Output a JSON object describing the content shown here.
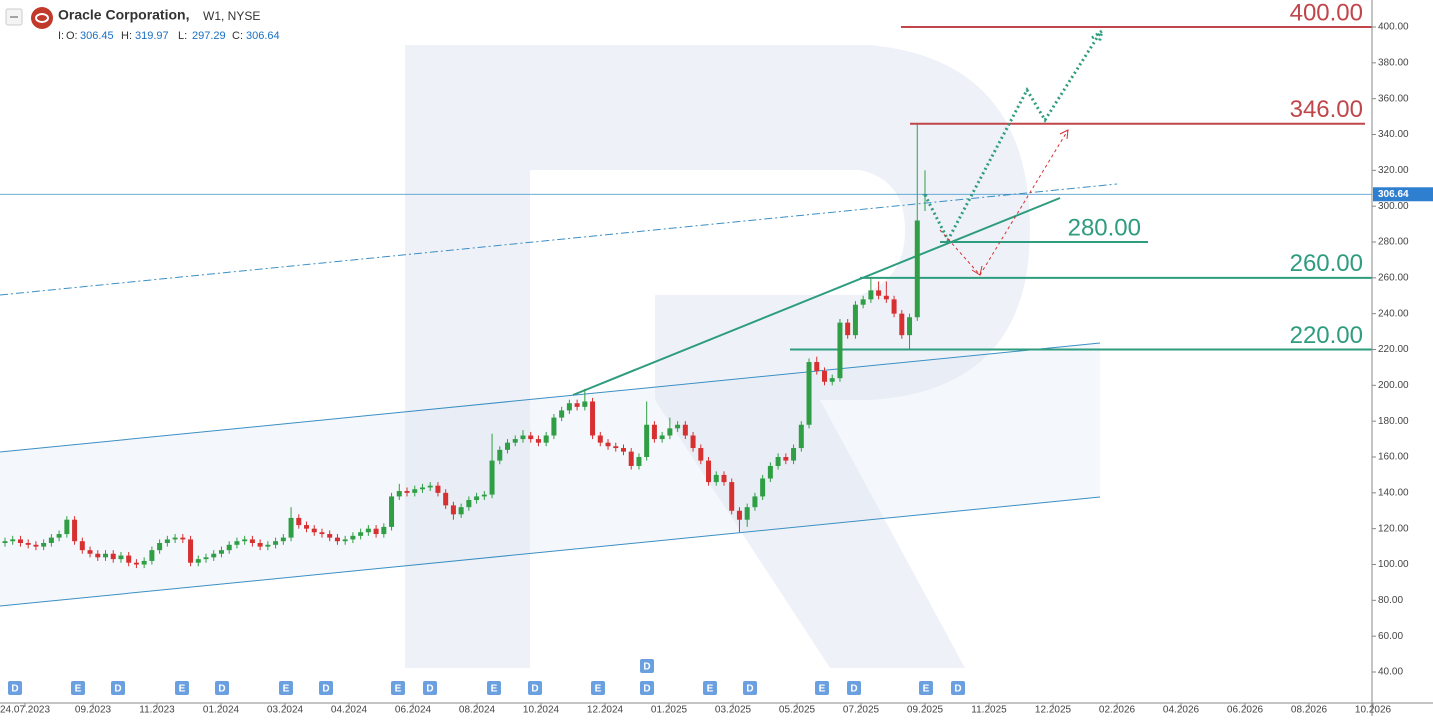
{
  "chart_data": {
    "type": "candlestick",
    "title": "Oracle Corporation,",
    "subtitle": "W1, NYSE",
    "header_labels": [
      "I:",
      "O:",
      "H:",
      "L:",
      "C:"
    ],
    "up_color": "#2f9e44",
    "down_color": "#d63031",
    "ylim": [
      22.7,
      415.07
    ],
    "yticks": [
      {
        "value": 40,
        "label": "40.00"
      },
      {
        "value": 60,
        "label": "60.00"
      },
      {
        "value": 80,
        "label": "80.00"
      },
      {
        "value": 100,
        "label": "100.00"
      },
      {
        "value": 120,
        "label": "120.00"
      },
      {
        "value": 140,
        "label": "140.00"
      },
      {
        "value": 160,
        "label": "160.00"
      },
      {
        "value": 180,
        "label": "180.00"
      },
      {
        "value": 200,
        "label": "200.00"
      },
      {
        "value": 220,
        "label": "220.00"
      },
      {
        "value": 240,
        "label": "240.00"
      },
      {
        "value": 260,
        "label": "260.00"
      },
      {
        "value": 280,
        "label": "280.00"
      },
      {
        "value": 300,
        "label": "300.00"
      },
      {
        "value": 320,
        "label": "320.00"
      },
      {
        "value": 340,
        "label": "340.00"
      },
      {
        "value": 360,
        "label": "360.00"
      },
      {
        "value": 380,
        "label": "380.00"
      },
      {
        "value": 400,
        "label": "400.00"
      }
    ],
    "x_labels": [
      "24.07.2023",
      "09.2023",
      "11.2023",
      "01.2024",
      "03.2024",
      "04.2024",
      "06.2024",
      "08.2024",
      "10.2024",
      "12.2024",
      "01.2025",
      "03.2025",
      "05.2025",
      "07.2025",
      "09.2025",
      "11.2025",
      "12.2025",
      "02.2026",
      "04.2026",
      "06.2026",
      "08.2026",
      "10.2026"
    ],
    "levels": [
      {
        "value": 400,
        "label": "400.00",
        "color": "#c0464b"
      },
      {
        "value": 346,
        "label": "346.00",
        "color": "#c0464b"
      },
      {
        "value": 280,
        "label": "280.00",
        "color": "#2e9c7e"
      },
      {
        "value": 260,
        "label": "260.00",
        "color": "#2e9c7e"
      },
      {
        "value": 220,
        "label": "220.00",
        "color": "#2e9c7e"
      }
    ],
    "events": [
      "D",
      "E",
      "D",
      "E",
      "D",
      "E",
      "D",
      "E",
      "D",
      "E",
      "D",
      "E",
      "D",
      "D",
      "E",
      "D",
      "E",
      "D",
      "E",
      "D"
    ],
    "ohlc": [
      [
        112,
        115,
        110,
        113
      ],
      [
        113,
        116,
        111,
        114
      ],
      [
        114,
        116,
        110,
        112
      ],
      [
        112,
        114,
        109,
        111
      ],
      [
        111,
        113,
        108,
        110
      ],
      [
        110,
        114,
        108,
        112
      ],
      [
        112,
        117,
        110,
        115
      ],
      [
        115,
        119,
        113,
        117
      ],
      [
        117,
        127,
        115,
        125
      ],
      [
        125,
        127,
        111,
        113
      ],
      [
        113,
        115,
        106,
        108
      ],
      [
        108,
        110,
        104,
        106
      ],
      [
        106,
        108,
        102,
        104
      ],
      [
        104,
        108,
        102,
        106
      ],
      [
        106,
        108,
        101,
        103
      ],
      [
        103,
        107,
        101,
        105
      ],
      [
        105,
        107,
        99,
        101
      ],
      [
        101,
        103,
        98,
        100
      ],
      [
        100,
        104,
        98,
        102
      ],
      [
        102,
        110,
        100,
        108
      ],
      [
        108,
        114,
        106,
        112
      ],
      [
        112,
        116,
        110,
        114
      ],
      [
        114,
        117,
        112,
        115
      ],
      [
        115,
        117,
        112,
        114
      ],
      [
        114,
        116,
        99,
        101
      ],
      [
        101,
        105,
        99,
        103
      ],
      [
        103,
        106,
        101,
        104
      ],
      [
        104,
        108,
        102,
        106
      ],
      [
        106,
        110,
        104,
        108
      ],
      [
        108,
        113,
        106,
        111
      ],
      [
        111,
        115,
        109,
        113
      ],
      [
        113,
        116,
        111,
        114
      ],
      [
        114,
        116,
        110,
        112
      ],
      [
        112,
        114,
        108,
        110
      ],
      [
        110,
        113,
        108,
        111
      ],
      [
        111,
        115,
        109,
        113
      ],
      [
        113,
        117,
        111,
        115
      ],
      [
        115,
        132,
        113,
        126
      ],
      [
        126,
        128,
        120,
        122
      ],
      [
        122,
        124,
        118,
        120
      ],
      [
        120,
        122,
        116,
        118
      ],
      [
        118,
        120,
        115,
        117
      ],
      [
        117,
        119,
        113,
        115
      ],
      [
        115,
        117,
        111,
        113
      ],
      [
        113,
        116,
        111,
        114
      ],
      [
        114,
        118,
        112,
        116
      ],
      [
        116,
        120,
        114,
        118
      ],
      [
        118,
        122,
        116,
        120
      ],
      [
        120,
        122,
        115,
        117
      ],
      [
        117,
        123,
        115,
        121
      ],
      [
        121,
        140,
        119,
        138
      ],
      [
        138,
        145,
        136,
        141
      ],
      [
        141,
        143,
        138,
        140
      ],
      [
        140,
        144,
        138,
        142
      ],
      [
        142,
        145,
        140,
        143
      ],
      [
        143,
        146,
        141,
        144
      ],
      [
        144,
        146,
        138,
        140
      ],
      [
        140,
        142,
        131,
        133
      ],
      [
        133,
        135,
        125,
        128
      ],
      [
        128,
        134,
        126,
        132
      ],
      [
        132,
        138,
        130,
        136
      ],
      [
        136,
        140,
        134,
        138
      ],
      [
        138,
        141,
        136,
        139
      ],
      [
        139,
        173,
        137,
        158
      ],
      [
        158,
        166,
        156,
        164
      ],
      [
        164,
        170,
        162,
        168
      ],
      [
        168,
        172,
        166,
        170
      ],
      [
        170,
        175,
        168,
        172
      ],
      [
        172,
        174,
        168,
        170
      ],
      [
        170,
        172,
        166,
        168
      ],
      [
        168,
        174,
        166,
        172
      ],
      [
        172,
        184,
        170,
        182
      ],
      [
        182,
        188,
        180,
        186
      ],
      [
        186,
        192,
        184,
        190
      ],
      [
        190,
        192,
        186,
        188
      ],
      [
        188,
        198,
        186,
        191
      ],
      [
        191,
        193,
        170,
        172
      ],
      [
        172,
        174,
        166,
        168
      ],
      [
        168,
        170,
        164,
        166
      ],
      [
        166,
        168,
        163,
        165
      ],
      [
        165,
        167,
        161,
        163
      ],
      [
        163,
        165,
        153,
        155
      ],
      [
        155,
        162,
        153,
        160
      ],
      [
        160,
        191,
        158,
        178
      ],
      [
        178,
        180,
        168,
        170
      ],
      [
        170,
        174,
        168,
        172
      ],
      [
        172,
        182,
        170,
        176
      ],
      [
        176,
        180,
        174,
        178
      ],
      [
        178,
        180,
        170,
        172
      ],
      [
        172,
        174,
        163,
        165
      ],
      [
        165,
        167,
        156,
        158
      ],
      [
        158,
        160,
        144,
        146
      ],
      [
        146,
        152,
        144,
        150
      ],
      [
        150,
        152,
        144,
        146
      ],
      [
        146,
        148,
        128,
        130
      ],
      [
        130,
        132,
        118,
        125
      ],
      [
        125,
        134,
        121,
        132
      ],
      [
        132,
        140,
        130,
        138
      ],
      [
        138,
        150,
        136,
        148
      ],
      [
        148,
        157,
        146,
        155
      ],
      [
        155,
        162,
        153,
        160
      ],
      [
        160,
        162,
        156,
        158
      ],
      [
        158,
        167,
        156,
        165
      ],
      [
        165,
        180,
        163,
        178
      ],
      [
        178,
        215,
        176,
        213
      ],
      [
        213,
        216,
        206,
        208
      ],
      [
        208,
        210,
        200,
        202
      ],
      [
        202,
        206,
        200,
        204
      ],
      [
        204,
        237,
        202,
        235
      ],
      [
        235,
        237,
        226,
        228
      ],
      [
        228,
        247,
        226,
        245
      ],
      [
        245,
        250,
        243,
        248
      ],
      [
        248,
        260,
        246,
        253
      ],
      [
        253,
        258,
        248,
        250
      ],
      [
        250,
        258,
        246,
        248
      ],
      [
        248,
        250,
        238,
        240
      ],
      [
        240,
        242,
        226,
        228
      ],
      [
        228,
        240,
        220,
        238
      ],
      [
        238,
        345.72,
        236,
        292
      ],
      [
        306.45,
        319.97,
        297.29,
        306.64
      ]
    ]
  }
}
